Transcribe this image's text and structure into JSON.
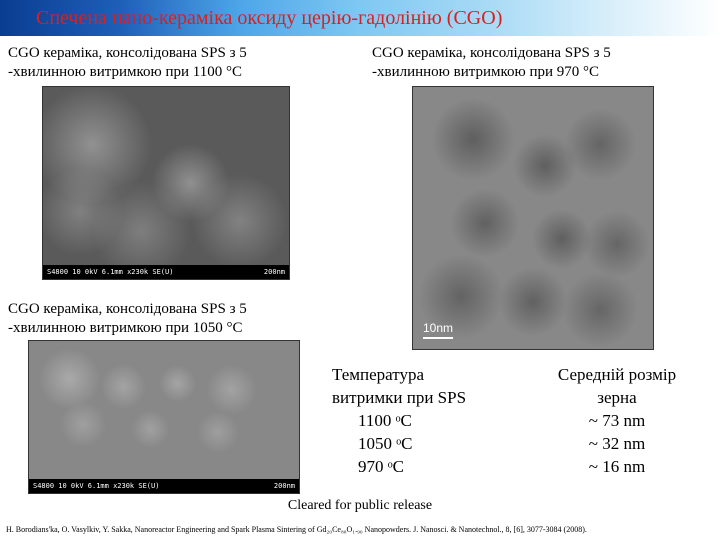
{
  "title": "Спечена нано-кераміка оксиду церію-гадолінію (CGO)",
  "captions": {
    "left1_line1": "CGO кераміка, консолідована SPS з 5",
    "left1_line2": "-хвилинною витримкою при 1100 °C",
    "right1_line1": "CGO кераміка, консолідована SPS з 5",
    "right1_line2": "-хвилинною витримкою при 970 °C",
    "left2_line1": "CGO кераміка, консолідована SPS з 5",
    "left2_line2": "-хвилинною витримкою при 1050 °C"
  },
  "sem_label_left": "S4800 10 0kV 6.1mm x230k SE(U)",
  "sem_label_right": "200nm",
  "tem_scalebar": "10nm",
  "table": {
    "header_left_1": "Температура",
    "header_left_2": "витримки при SPS",
    "header_right_1": "Середній розмір",
    "header_right_2": "зерна",
    "rows": [
      {
        "temp": "1100 ᵒC",
        "size": "~  73 nm"
      },
      {
        "temp": "1050 ᵒC",
        "size": "~ 32 nm"
      },
      {
        "temp": "970 ᵒC",
        "size": "~ 16 nm"
      }
    ]
  },
  "cleared": "Cleared for public release",
  "citation": "H. Borodians'ka, O. Vasylkiv, Y. Sakka, Nanoreactor Engineering and Spark Plasma Sintering of Gd₂₀Ce₈₀O₁.₉₀ Nanopowders. J. Nanosci. & Nanotechnol., 8, [6], 3077-3084 (2008).",
  "colors": {
    "title_text": "#d92020",
    "gradient_start": "#0a3d91",
    "gradient_end": "#ffffff"
  }
}
